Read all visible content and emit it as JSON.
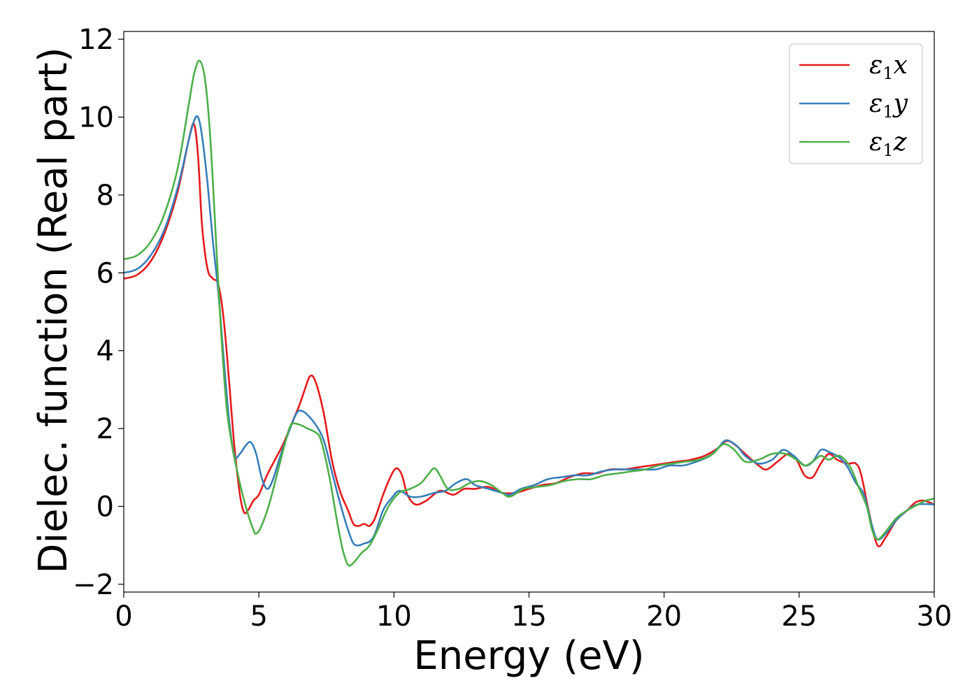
{
  "chart_data": {
    "type": "line",
    "title": "",
    "xlabel": "Energy (eV)",
    "ylabel": "Dielec. function (Real part)",
    "xlim": [
      0,
      30
    ],
    "ylim": [
      -2.2,
      12.2
    ],
    "xticks": [
      0,
      5,
      10,
      15,
      20,
      25,
      30
    ],
    "xtick_labels": [
      "0",
      "5",
      "10",
      "15",
      "20",
      "25",
      "30"
    ],
    "yticks": [
      -2,
      0,
      2,
      4,
      6,
      8,
      10,
      12
    ],
    "ytick_labels": [
      "−2",
      "0",
      "2",
      "4",
      "6",
      "8",
      "10",
      "12"
    ],
    "grid": false,
    "legend_position": "top-right",
    "series": [
      {
        "name": "ε1x",
        "legend": {
          "base": "ε",
          "sub": "1",
          "tail": "x"
        },
        "color": "#e41a1c",
        "points": [
          [
            0,
            5.85
          ],
          [
            0.5,
            5.95
          ],
          [
            1,
            6.3
          ],
          [
            1.5,
            7.0
          ],
          [
            2.0,
            8.1
          ],
          [
            2.4,
            9.4
          ],
          [
            2.6,
            9.82
          ],
          [
            2.75,
            9.0
          ],
          [
            2.9,
            7.2
          ],
          [
            3.1,
            6.1
          ],
          [
            3.3,
            5.85
          ],
          [
            3.5,
            5.7
          ],
          [
            3.7,
            4.8
          ],
          [
            3.9,
            3.2
          ],
          [
            4.1,
            1.5
          ],
          [
            4.3,
            0.3
          ],
          [
            4.45,
            -0.15
          ],
          [
            4.6,
            -0.1
          ],
          [
            4.8,
            0.15
          ],
          [
            5.0,
            0.3
          ],
          [
            5.3,
            0.8
          ],
          [
            5.6,
            1.2
          ],
          [
            5.9,
            1.6
          ],
          [
            6.2,
            2.1
          ],
          [
            6.5,
            2.6
          ],
          [
            6.7,
            3.0
          ],
          [
            6.9,
            3.35
          ],
          [
            7.1,
            3.2
          ],
          [
            7.4,
            2.4
          ],
          [
            7.7,
            1.2
          ],
          [
            8.0,
            0.4
          ],
          [
            8.3,
            -0.1
          ],
          [
            8.5,
            -0.45
          ],
          [
            8.7,
            -0.5
          ],
          [
            8.9,
            -0.45
          ],
          [
            9.1,
            -0.5
          ],
          [
            9.3,
            -0.3
          ],
          [
            9.6,
            0.3
          ],
          [
            9.9,
            0.8
          ],
          [
            10.1,
            0.98
          ],
          [
            10.3,
            0.8
          ],
          [
            10.5,
            0.3
          ],
          [
            10.8,
            0.05
          ],
          [
            11.2,
            0.15
          ],
          [
            11.7,
            0.4
          ],
          [
            12.2,
            0.3
          ],
          [
            12.6,
            0.45
          ],
          [
            13.0,
            0.45
          ],
          [
            13.5,
            0.5
          ],
          [
            14.0,
            0.35
          ],
          [
            14.5,
            0.35
          ],
          [
            15.0,
            0.45
          ],
          [
            15.5,
            0.55
          ],
          [
            16.0,
            0.6
          ],
          [
            16.5,
            0.75
          ],
          [
            17.0,
            0.85
          ],
          [
            17.5,
            0.85
          ],
          [
            18.0,
            0.95
          ],
          [
            18.5,
            0.95
          ],
          [
            19.0,
            1.0
          ],
          [
            19.5,
            1.05
          ],
          [
            20.0,
            1.1
          ],
          [
            20.5,
            1.15
          ],
          [
            21.0,
            1.2
          ],
          [
            21.5,
            1.3
          ],
          [
            22.0,
            1.5
          ],
          [
            22.3,
            1.68
          ],
          [
            22.6,
            1.6
          ],
          [
            23.0,
            1.35
          ],
          [
            23.5,
            1.05
          ],
          [
            23.8,
            0.95
          ],
          [
            24.2,
            1.15
          ],
          [
            24.6,
            1.35
          ],
          [
            24.9,
            1.2
          ],
          [
            25.2,
            0.8
          ],
          [
            25.5,
            0.75
          ],
          [
            25.8,
            1.1
          ],
          [
            26.1,
            1.35
          ],
          [
            26.4,
            1.2
          ],
          [
            26.8,
            1.1
          ],
          [
            27.1,
            1.1
          ],
          [
            27.3,
            0.8
          ],
          [
            27.6,
            -0.2
          ],
          [
            27.9,
            -1.0
          ],
          [
            28.2,
            -0.8
          ],
          [
            28.6,
            -0.35
          ],
          [
            29.0,
            -0.1
          ],
          [
            29.3,
            0.1
          ],
          [
            29.6,
            0.15
          ],
          [
            30,
            0.05
          ]
        ]
      },
      {
        "name": "ε1y",
        "legend": {
          "base": "ε",
          "sub": "1",
          "tail": "y"
        },
        "color": "#377eb8",
        "points": [
          [
            0,
            6.0
          ],
          [
            0.5,
            6.1
          ],
          [
            1,
            6.45
          ],
          [
            1.5,
            7.1
          ],
          [
            2.0,
            8.2
          ],
          [
            2.4,
            9.4
          ],
          [
            2.6,
            9.9
          ],
          [
            2.75,
            10.0
          ],
          [
            2.9,
            9.5
          ],
          [
            3.1,
            8.3
          ],
          [
            3.3,
            6.8
          ],
          [
            3.5,
            5.5
          ],
          [
            3.7,
            3.8
          ],
          [
            3.9,
            2.2
          ],
          [
            4.1,
            1.3
          ],
          [
            4.3,
            1.35
          ],
          [
            4.5,
            1.55
          ],
          [
            4.7,
            1.65
          ],
          [
            4.9,
            1.35
          ],
          [
            5.1,
            0.75
          ],
          [
            5.3,
            0.45
          ],
          [
            5.5,
            0.65
          ],
          [
            5.8,
            1.3
          ],
          [
            6.1,
            1.9
          ],
          [
            6.4,
            2.4
          ],
          [
            6.6,
            2.45
          ],
          [
            6.8,
            2.35
          ],
          [
            7.1,
            2.1
          ],
          [
            7.4,
            1.7
          ],
          [
            7.7,
            0.9
          ],
          [
            8.0,
            0.1
          ],
          [
            8.3,
            -0.6
          ],
          [
            8.5,
            -0.95
          ],
          [
            8.7,
            -1.0
          ],
          [
            8.9,
            -0.95
          ],
          [
            9.1,
            -0.9
          ],
          [
            9.3,
            -0.7
          ],
          [
            9.6,
            -0.1
          ],
          [
            9.9,
            0.2
          ],
          [
            10.2,
            0.4
          ],
          [
            10.6,
            0.25
          ],
          [
            11.0,
            0.25
          ],
          [
            11.5,
            0.35
          ],
          [
            11.9,
            0.4
          ],
          [
            12.3,
            0.6
          ],
          [
            12.7,
            0.7
          ],
          [
            13.0,
            0.55
          ],
          [
            13.5,
            0.45
          ],
          [
            14.0,
            0.35
          ],
          [
            14.3,
            0.3
          ],
          [
            14.7,
            0.45
          ],
          [
            15.2,
            0.55
          ],
          [
            15.7,
            0.7
          ],
          [
            16.2,
            0.75
          ],
          [
            16.7,
            0.8
          ],
          [
            17.2,
            0.8
          ],
          [
            17.7,
            0.9
          ],
          [
            18.2,
            0.95
          ],
          [
            18.7,
            0.95
          ],
          [
            19.2,
            0.95
          ],
          [
            19.7,
            0.95
          ],
          [
            20.2,
            1.05
          ],
          [
            20.7,
            1.05
          ],
          [
            21.2,
            1.15
          ],
          [
            21.7,
            1.3
          ],
          [
            22.0,
            1.5
          ],
          [
            22.3,
            1.7
          ],
          [
            22.7,
            1.55
          ],
          [
            23.0,
            1.3
          ],
          [
            23.5,
            1.1
          ],
          [
            24.0,
            1.2
          ],
          [
            24.4,
            1.45
          ],
          [
            24.8,
            1.3
          ],
          [
            25.2,
            1.05
          ],
          [
            25.5,
            1.15
          ],
          [
            25.8,
            1.45
          ],
          [
            26.1,
            1.4
          ],
          [
            26.5,
            1.25
          ],
          [
            26.8,
            1.0
          ],
          [
            27.1,
            0.6
          ],
          [
            27.4,
            0.3
          ],
          [
            27.7,
            -0.5
          ],
          [
            27.9,
            -0.85
          ],
          [
            28.2,
            -0.7
          ],
          [
            28.6,
            -0.35
          ],
          [
            29.0,
            -0.1
          ],
          [
            29.4,
            0.05
          ],
          [
            30,
            0.05
          ]
        ]
      },
      {
        "name": "ε1z",
        "legend": {
          "base": "ε",
          "sub": "1",
          "tail": "z"
        },
        "color": "#4daf4a",
        "points": [
          [
            0,
            6.35
          ],
          [
            0.5,
            6.45
          ],
          [
            1,
            6.8
          ],
          [
            1.5,
            7.5
          ],
          [
            2.0,
            8.7
          ],
          [
            2.4,
            10.3
          ],
          [
            2.6,
            11.1
          ],
          [
            2.8,
            11.45
          ],
          [
            3.0,
            11.0
          ],
          [
            3.2,
            9.5
          ],
          [
            3.4,
            7.0
          ],
          [
            3.6,
            4.5
          ],
          [
            3.8,
            2.6
          ],
          [
            4.0,
            1.6
          ],
          [
            4.2,
            0.9
          ],
          [
            4.4,
            0.3
          ],
          [
            4.6,
            -0.2
          ],
          [
            4.8,
            -0.6
          ],
          [
            4.9,
            -0.7
          ],
          [
            5.1,
            -0.5
          ],
          [
            5.4,
            0.1
          ],
          [
            5.7,
            0.9
          ],
          [
            6.0,
            1.7
          ],
          [
            6.2,
            2.1
          ],
          [
            6.5,
            2.1
          ],
          [
            6.8,
            2.0
          ],
          [
            7.1,
            1.9
          ],
          [
            7.3,
            1.7
          ],
          [
            7.6,
            0.8
          ],
          [
            7.9,
            -0.4
          ],
          [
            8.1,
            -1.1
          ],
          [
            8.3,
            -1.5
          ],
          [
            8.5,
            -1.45
          ],
          [
            8.8,
            -1.2
          ],
          [
            9.1,
            -1.0
          ],
          [
            9.4,
            -0.6
          ],
          [
            9.8,
            0.0
          ],
          [
            10.2,
            0.35
          ],
          [
            10.6,
            0.45
          ],
          [
            11.0,
            0.6
          ],
          [
            11.3,
            0.85
          ],
          [
            11.5,
            0.98
          ],
          [
            11.7,
            0.8
          ],
          [
            12.0,
            0.45
          ],
          [
            12.4,
            0.45
          ],
          [
            12.8,
            0.6
          ],
          [
            13.2,
            0.65
          ],
          [
            13.6,
            0.55
          ],
          [
            14.0,
            0.35
          ],
          [
            14.3,
            0.25
          ],
          [
            14.8,
            0.45
          ],
          [
            15.3,
            0.5
          ],
          [
            15.8,
            0.55
          ],
          [
            16.3,
            0.65
          ],
          [
            16.8,
            0.7
          ],
          [
            17.3,
            0.7
          ],
          [
            17.8,
            0.8
          ],
          [
            18.3,
            0.85
          ],
          [
            18.8,
            0.9
          ],
          [
            19.3,
            0.95
          ],
          [
            19.8,
            1.05
          ],
          [
            20.3,
            1.1
          ],
          [
            20.8,
            1.15
          ],
          [
            21.3,
            1.2
          ],
          [
            21.8,
            1.35
          ],
          [
            22.2,
            1.6
          ],
          [
            22.6,
            1.45
          ],
          [
            23.0,
            1.15
          ],
          [
            23.5,
            1.2
          ],
          [
            24.0,
            1.35
          ],
          [
            24.5,
            1.35
          ],
          [
            24.9,
            1.2
          ],
          [
            25.2,
            1.05
          ],
          [
            25.5,
            1.15
          ],
          [
            25.8,
            1.3
          ],
          [
            26.1,
            1.2
          ],
          [
            26.5,
            1.3
          ],
          [
            26.9,
            1.0
          ],
          [
            27.2,
            0.5
          ],
          [
            27.5,
            0.0
          ],
          [
            27.7,
            -0.6
          ],
          [
            27.9,
            -0.85
          ],
          [
            28.2,
            -0.65
          ],
          [
            28.6,
            -0.3
          ],
          [
            29.0,
            -0.1
          ],
          [
            29.4,
            0.05
          ],
          [
            29.7,
            0.15
          ],
          [
            30,
            0.2
          ]
        ]
      }
    ]
  }
}
